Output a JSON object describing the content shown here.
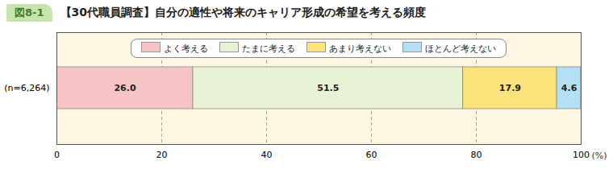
{
  "chart_data": {
    "type": "bar",
    "orientation": "horizontal",
    "stacked": true,
    "figure_label": "図8-1",
    "title": "【30代職員調査】自分の適性や将来のキャリア形成の希望を考える頻度",
    "xlabel": "(%)",
    "categories": [
      "(n=6,264)"
    ],
    "series": [
      {
        "name": "よく考える",
        "color": "#f6c4c4",
        "values": [
          26.0
        ],
        "value_labels": [
          "26.0"
        ]
      },
      {
        "name": "たまに考える",
        "color": "#e8f3d6",
        "values": [
          51.5
        ],
        "value_labels": [
          "51.5"
        ]
      },
      {
        "name": "あまり考えない",
        "color": "#fbe27a",
        "values": [
          17.9
        ],
        "value_labels": [
          "17.9"
        ]
      },
      {
        "name": "ほとんど考えない",
        "color": "#b3e0f2",
        "values": [
          4.6
        ],
        "value_labels": [
          "4.6"
        ]
      }
    ],
    "xlim": [
      0,
      100
    ],
    "xticks": [
      0,
      20,
      40,
      60,
      80,
      100
    ],
    "grid": true,
    "legend": "top",
    "data_labels": true
  }
}
